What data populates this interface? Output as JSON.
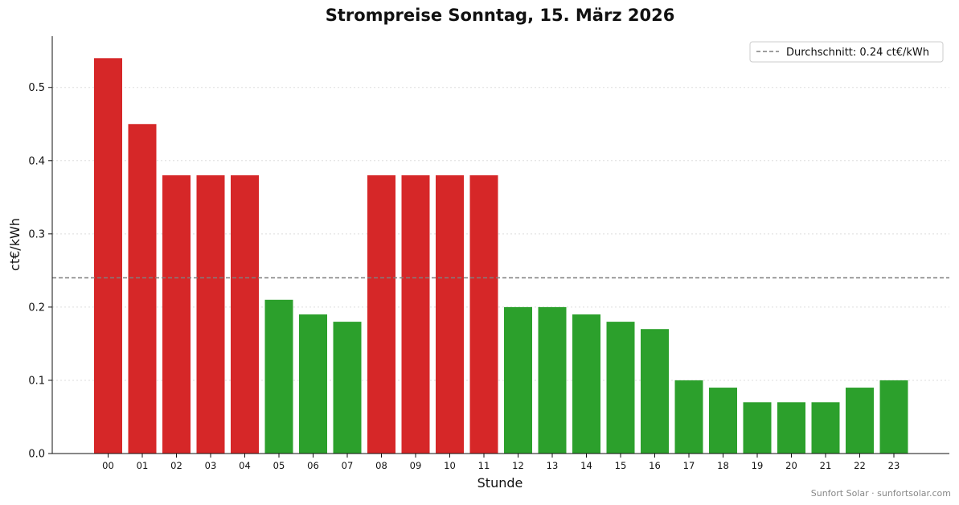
{
  "chart_data": {
    "type": "bar",
    "title": "Strompreise Sonntag, 15. März 2026",
    "xlabel": "Stunde",
    "ylabel": "ct€/kWh",
    "categories": [
      "00",
      "01",
      "02",
      "03",
      "04",
      "05",
      "06",
      "07",
      "08",
      "09",
      "10",
      "11",
      "12",
      "13",
      "14",
      "15",
      "16",
      "17",
      "18",
      "19",
      "20",
      "21",
      "22",
      "23"
    ],
    "values": [
      0.54,
      0.45,
      0.38,
      0.38,
      0.38,
      0.21,
      0.19,
      0.18,
      0.38,
      0.38,
      0.38,
      0.38,
      0.2,
      0.2,
      0.19,
      0.18,
      0.17,
      0.1,
      0.09,
      0.07,
      0.07,
      0.07,
      0.09,
      0.1
    ],
    "ylim": [
      0,
      0.57
    ],
    "yticks": [
      0.0,
      0.1,
      0.2,
      0.3,
      0.4,
      0.5
    ],
    "ytick_labels": [
      "0.0",
      "0.1",
      "0.2",
      "0.3",
      "0.4",
      "0.5"
    ],
    "average": 0.24,
    "legend": {
      "label": "Durchschnitt: 0.24 ct€/kWh",
      "placement": "top-right"
    },
    "grid": "horizontal dotted",
    "colors": {
      "above_average": "#d62728",
      "below_average": "#2ca02c",
      "average_line": "#7f7f7f"
    }
  },
  "footer": "Sunfort Solar · sunfortsolar.com"
}
